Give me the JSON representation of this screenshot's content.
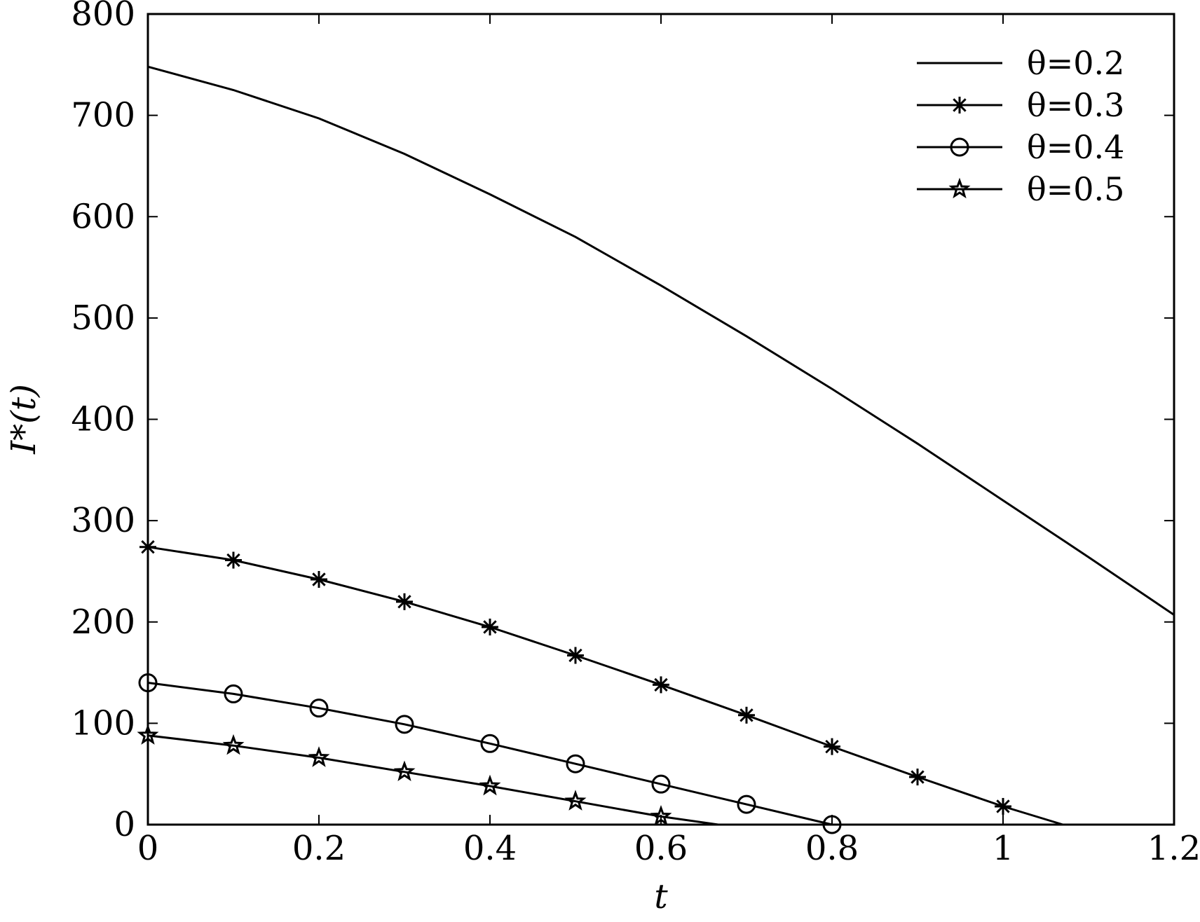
{
  "chart_data": {
    "type": "line",
    "xlabel": "t",
    "ylabel": "I*(t)",
    "xlim": [
      0,
      1.2
    ],
    "ylim": [
      0,
      800
    ],
    "xticks": [
      "0",
      "0.2",
      "0.4",
      "0.6",
      "0.8",
      "1",
      "1.2"
    ],
    "yticks": [
      "0",
      "100",
      "200",
      "300",
      "400",
      "500",
      "600",
      "700",
      "800"
    ],
    "grid": false,
    "legend_position": "top-right",
    "series": [
      {
        "name": "θ=0.2",
        "marker": "none",
        "x": [
          0,
          0.1,
          0.2,
          0.3,
          0.4,
          0.5,
          0.6,
          0.7,
          0.8,
          0.9,
          1.0,
          1.1,
          1.2
        ],
        "y": [
          748,
          725,
          697,
          662,
          622,
          580,
          532,
          482,
          430,
          376,
          320,
          264,
          207
        ]
      },
      {
        "name": "θ=0.3",
        "marker": "asterisk",
        "x": [
          0,
          0.1,
          0.2,
          0.3,
          0.4,
          0.5,
          0.6,
          0.7,
          0.8,
          0.9,
          1.0,
          1.07
        ],
        "y": [
          274,
          261,
          242,
          220,
          195,
          167,
          138,
          108,
          77,
          47,
          18,
          0
        ]
      },
      {
        "name": "θ=0.4",
        "marker": "circle",
        "x": [
          0,
          0.1,
          0.2,
          0.3,
          0.4,
          0.5,
          0.6,
          0.7,
          0.8
        ],
        "y": [
          140,
          129,
          115,
          99,
          80,
          60,
          40,
          20,
          0
        ]
      },
      {
        "name": "θ=0.5",
        "marker": "star",
        "x": [
          0,
          0.1,
          0.2,
          0.3,
          0.4,
          0.5,
          0.6,
          0.667
        ],
        "y": [
          88,
          78,
          66,
          52,
          38,
          23,
          8,
          0
        ]
      }
    ]
  }
}
